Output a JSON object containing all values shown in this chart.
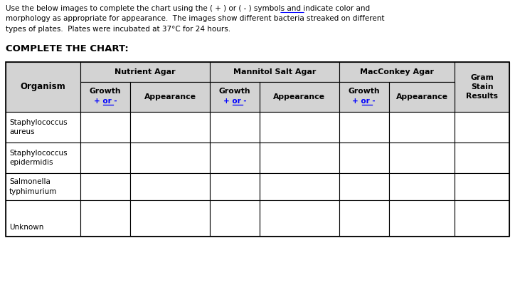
{
  "title_text": "Use the below images to complete the chart using the ( + ) or ( - ) symbols and indicate color and\nmorphology as appropriate for appearance.  The images show different bacteria streaked on different\ntypes of plates.  Plates were incubated at 37°C for 24 hours.",
  "underline_plus_text": "+ ",
  "section_title": "COMPLETE THE CHART:",
  "header_bg": "#d3d3d3",
  "cell_bg": "#ffffff",
  "border_color": "#000000",
  "text_color": "#000000",
  "blue_color": "#0000ff",
  "organisms": [
    "Staphylococcus\naureus",
    "Staphylococcus\nepidermidis",
    "Salmonella\ntyphimurium",
    "\n\nUnknown"
  ],
  "col1_header": "Organism",
  "nutrient_header": "Nutrient Agar",
  "mannitol_header": "Mannitol Salt Agar",
  "macconkey_header": "MacConkey Agar",
  "gram_header": "Gram\nStain\nResults",
  "growth_label": "Growth",
  "growth_sublabel": "+ or -",
  "appearance_label": "Appearance",
  "fig_width": 7.24,
  "fig_height": 4.07
}
